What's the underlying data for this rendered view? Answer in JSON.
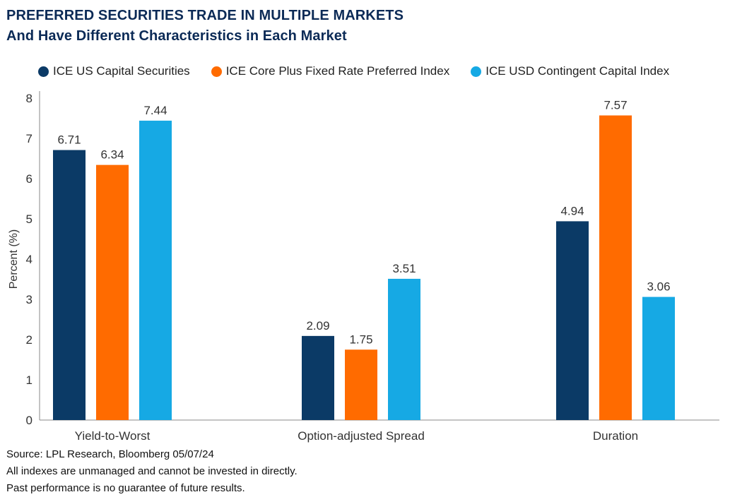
{
  "title": {
    "line1": "PREFERRED SECURITIES TRADE IN MULTIPLE MARKETS",
    "line2": "And Have Different Characteristics in Each Market"
  },
  "colors": {
    "title": "#0b2a56",
    "series": [
      "#0b3a66",
      "#ff6b00",
      "#16a9e4"
    ],
    "axis": "#888888",
    "text": "#333333"
  },
  "chart_data": {
    "type": "bar",
    "title": "PREFERRED SECURITIES TRADE IN MULTIPLE MARKETS",
    "subtitle": "And Have Different Characteristics in Each Market",
    "categories": [
      "Yield-to-Worst",
      "Option-adjusted Spread",
      "Duration"
    ],
    "series": [
      {
        "name": "ICE US Capital Securities",
        "values": [
          6.71,
          2.09,
          4.94
        ],
        "labels": [
          "6.71",
          "2.09",
          "4.94"
        ]
      },
      {
        "name": "ICE Core Plus Fixed Rate Preferred Index",
        "values": [
          6.34,
          1.75,
          7.57
        ],
        "labels": [
          "6.34",
          "1.75",
          "7.57"
        ]
      },
      {
        "name": "ICE USD Contingent Capital Index",
        "values": [
          7.44,
          3.51,
          3.06
        ],
        "labels": [
          "7.44",
          "3.51",
          "3.06"
        ]
      }
    ],
    "xlabel": "",
    "ylabel": "Percent (%)",
    "ylim": [
      0,
      8
    ],
    "yticks": [
      "0",
      "1",
      "2",
      "3",
      "4",
      "5",
      "6",
      "7",
      "8"
    ],
    "grid": false,
    "legend": "top"
  },
  "footer": {
    "source": "Source: LPL Research, Bloomberg 05/07/24",
    "note1": "All indexes are unmanaged and cannot be invested in directly.",
    "note2": "Past performance is no guarantee of future results."
  }
}
